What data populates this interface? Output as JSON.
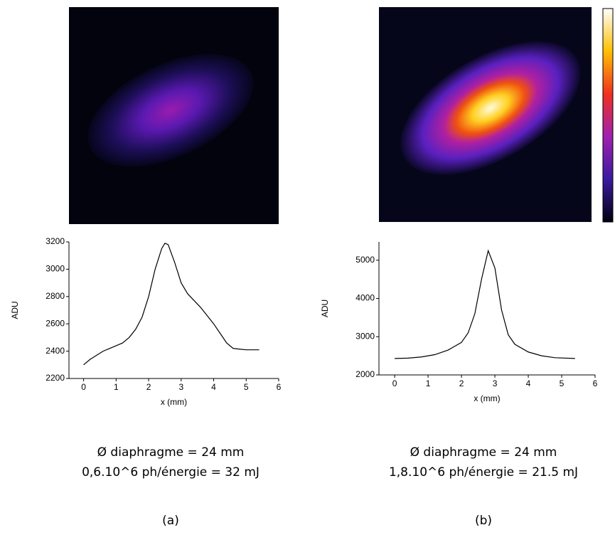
{
  "chart_data": [
    {
      "type": "line",
      "y_label": "ADU",
      "x_label": "x (mm)",
      "x": [
        0,
        0.2,
        0.4,
        0.6,
        0.8,
        1.0,
        1.2,
        1.4,
        1.6,
        1.8,
        2.0,
        2.2,
        2.4,
        2.5,
        2.6,
        2.8,
        3.0,
        3.2,
        3.4,
        3.6,
        3.8,
        4.0,
        4.2,
        4.4,
        4.6,
        4.8,
        5.0,
        5.2,
        5.4
      ],
      "values": [
        2300,
        2340,
        2370,
        2400,
        2420,
        2440,
        2460,
        2500,
        2560,
        2650,
        2800,
        3000,
        3150,
        3190,
        3180,
        3050,
        2900,
        2820,
        2770,
        2720,
        2660,
        2600,
        2530,
        2460,
        2420,
        2415,
        2410,
        2410,
        2410
      ],
      "color": "#000000",
      "xlim": [
        -0.45,
        6
      ],
      "ylim": [
        2200,
        3200
      ],
      "xticks": [
        0,
        1,
        2,
        3,
        4,
        5,
        6
      ],
      "yticks": [
        2200,
        2400,
        2600,
        2800,
        3000,
        3200
      ]
    },
    {
      "type": "line",
      "y_label": "ADU",
      "x_label": "x (mm)",
      "x": [
        0,
        0.4,
        0.8,
        1.2,
        1.6,
        2.0,
        2.2,
        2.4,
        2.6,
        2.8,
        3.0,
        3.2,
        3.4,
        3.6,
        4.0,
        4.4,
        4.8,
        5.4
      ],
      "values": [
        2430,
        2440,
        2470,
        2530,
        2650,
        2850,
        3100,
        3600,
        4500,
        5250,
        4800,
        3700,
        3050,
        2800,
        2600,
        2500,
        2450,
        2430
      ],
      "color": "#000000",
      "xlim": [
        -0.47,
        6
      ],
      "ylim": [
        2000,
        5480
      ],
      "xticks": [
        0,
        1,
        2,
        3,
        4,
        5,
        6
      ],
      "yticks": [
        2000,
        3000,
        4000,
        5000
      ]
    }
  ],
  "captions": [
    {
      "line1": "Ø diaphragme = 24 mm",
      "line2": "0,6.10^6 ph/énergie = 32 mJ",
      "label": "(a)"
    },
    {
      "line1": "Ø diaphragme = 24 mm",
      "line2": "1,8.10^6 ph/énergie = 21.5 mJ",
      "label": "(b)"
    }
  ]
}
